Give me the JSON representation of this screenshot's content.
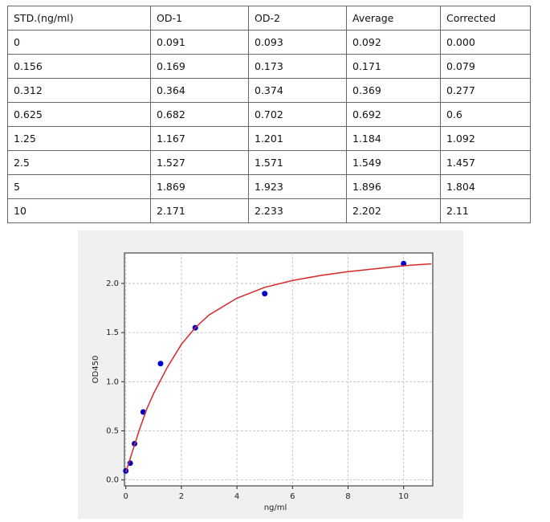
{
  "table": {
    "header": [
      "STD.(ng/ml)",
      "OD-1",
      "OD-2",
      "Average",
      "Corrected"
    ],
    "rows": [
      [
        "0",
        "0.091",
        "0.093",
        "0.092",
        "0.000"
      ],
      [
        "0.156",
        "0.169",
        "0.173",
        "0.171",
        "0.079"
      ],
      [
        "0.312",
        "0.364",
        "0.374",
        "0.369",
        "0.277"
      ],
      [
        "0.625",
        "0.682",
        "0.702",
        "0.692",
        "0.6"
      ],
      [
        "1.25",
        "1.167",
        "1.201",
        "1.184",
        "1.092"
      ],
      [
        "2.5",
        "1.527",
        "1.571",
        "1.549",
        "1.457"
      ],
      [
        "5",
        "1.869",
        "1.923",
        "1.896",
        "1.804"
      ],
      [
        "10",
        "2.171",
        "2.233",
        "2.202",
        "2.11"
      ]
    ]
  },
  "chart_data": {
    "type": "scatter",
    "xlabel": "ng/ml",
    "ylabel": "OD450",
    "xlim": [
      -0.05,
      11.05
    ],
    "ylim": [
      -0.06,
      2.31
    ],
    "xticks": [
      0,
      2,
      4,
      6,
      8,
      10
    ],
    "yticks": [
      {
        "value": 0,
        "label": "0.0"
      },
      {
        "value": 0.5,
        "label": "0.5"
      },
      {
        "value": 1,
        "label": "1.0"
      },
      {
        "value": 1.5,
        "label": "1.5"
      },
      {
        "value": 2,
        "label": "2.0"
      }
    ],
    "grid": true,
    "series": [
      {
        "type": "scatter",
        "color": "#0000cc",
        "x": [
          0,
          0.156,
          0.312,
          0.625,
          1.25,
          2.5,
          5,
          10
        ],
        "values": [
          0.092,
          0.171,
          0.369,
          0.692,
          1.184,
          1.549,
          1.896,
          2.202
        ]
      },
      {
        "type": "line",
        "color": "#d62728",
        "x": [
          0,
          0.25,
          0.5,
          0.75,
          1,
          1.5,
          2,
          2.5,
          3,
          4,
          5,
          6,
          7,
          8,
          9,
          10,
          11
        ],
        "values": [
          0.08,
          0.3,
          0.52,
          0.72,
          0.88,
          1.15,
          1.38,
          1.55,
          1.68,
          1.85,
          1.96,
          2.03,
          2.08,
          2.12,
          2.15,
          2.18,
          2.2
        ]
      }
    ]
  }
}
